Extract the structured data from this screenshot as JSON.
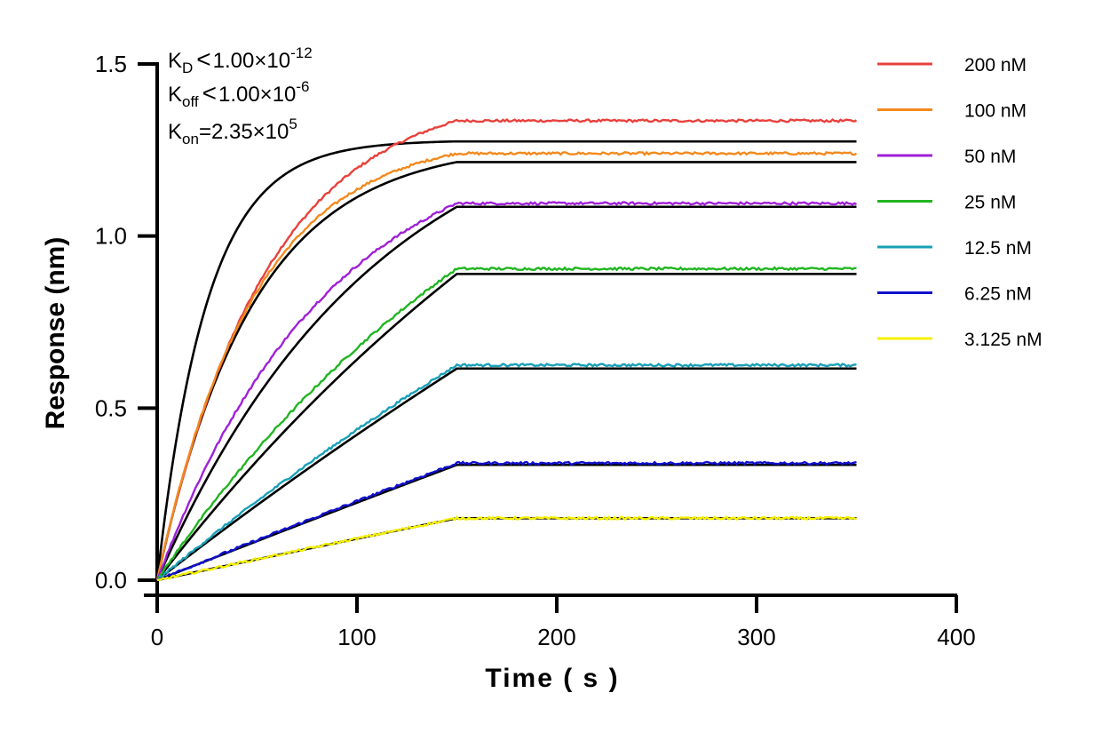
{
  "chart_data": {
    "type": "line",
    "title": "",
    "xlabel": "Time ( s )",
    "ylabel": "Response (nm)",
    "xlim": [
      0,
      400
    ],
    "ylim": [
      0,
      1.5
    ],
    "x_ticks": [
      "0",
      "100",
      "200",
      "300",
      "400"
    ],
    "y_ticks": [
      "0.0",
      "0.5",
      "1.0",
      "1.5"
    ],
    "grid": false,
    "legend_position": "right",
    "association_end_s": 150,
    "dissociation_end_s": 350,
    "annotations": {
      "kd": {
        "symbol": "K",
        "sub": "D",
        "relation": "<",
        "mantissa": "1.00×10",
        "exp": "-12"
      },
      "koff": {
        "symbol": "K",
        "sub": "off",
        "relation": "<",
        "mantissa": "1.00×10",
        "exp": "-6"
      },
      "kon": {
        "symbol": "K",
        "sub": "on",
        "relation": "=",
        "mantissa": "2.35×10",
        "exp": "5"
      }
    },
    "series": [
      {
        "name": "200 nM",
        "color": "#e8413c",
        "plateau": 1.335,
        "fit_plateau": 1.275,
        "tau": 55,
        "fit_tau": 25
      },
      {
        "name": "100 nM",
        "color": "#f28a1e",
        "plateau": 1.24,
        "fit_plateau": 1.215,
        "tau": 48,
        "fit_tau": 48
      },
      {
        "name": "50 nM",
        "color": "#a020d8",
        "plateau": 1.095,
        "fit_plateau": 1.085,
        "tau": 85,
        "fit_tau": 110
      },
      {
        "name": "25 nM",
        "color": "#22b522",
        "plateau": 0.905,
        "fit_plateau": 0.89,
        "tau": 200,
        "fit_tau": 300
      },
      {
        "name": "12.5 nM",
        "color": "#1aa0b8",
        "plateau": 0.625,
        "fit_plateau": 0.615,
        "tau": 500,
        "fit_tau": 800
      },
      {
        "name": "6.25 nM",
        "color": "#1010cc",
        "plateau": 0.34,
        "fit_plateau": 0.335,
        "tau": 2000,
        "fit_tau": 3000
      },
      {
        "name": "3.125 nM",
        "color": "#f5f000",
        "plateau": 0.18,
        "fit_plateau": 0.18,
        "tau": 3000,
        "fit_tau": 5000
      }
    ]
  }
}
